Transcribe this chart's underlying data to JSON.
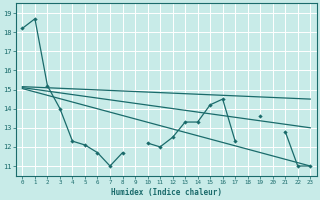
{
  "xlabel": "Humidex (Indice chaleur)",
  "bg_color": "#c8ebe8",
  "line_color": "#1a6b6b",
  "grid_color": "#ffffff",
  "xlim": [
    -0.5,
    23.5
  ],
  "ylim": [
    10.5,
    19.5
  ],
  "yticks": [
    11,
    12,
    13,
    14,
    15,
    16,
    17,
    18,
    19
  ],
  "xticks": [
    0,
    1,
    2,
    3,
    4,
    5,
    6,
    7,
    8,
    9,
    10,
    11,
    12,
    13,
    14,
    15,
    16,
    17,
    18,
    19,
    20,
    21,
    22,
    23
  ],
  "series1": [
    18.2,
    18.7,
    15.2,
    14.0,
    12.3,
    12.1,
    11.7,
    11.0,
    11.7,
    null,
    12.2,
    12.0,
    12.5,
    13.3,
    13.3,
    14.2,
    14.5,
    12.3,
    null,
    13.6,
    null,
    12.8,
    11.0,
    11.0
  ],
  "line2_x": [
    0,
    23
  ],
  "line2_y": [
    15.15,
    14.5
  ],
  "line3_x": [
    0,
    23
  ],
  "line3_y": [
    15.1,
    13.0
  ],
  "line4_x": [
    0,
    23
  ],
  "line4_y": [
    15.05,
    11.0
  ]
}
